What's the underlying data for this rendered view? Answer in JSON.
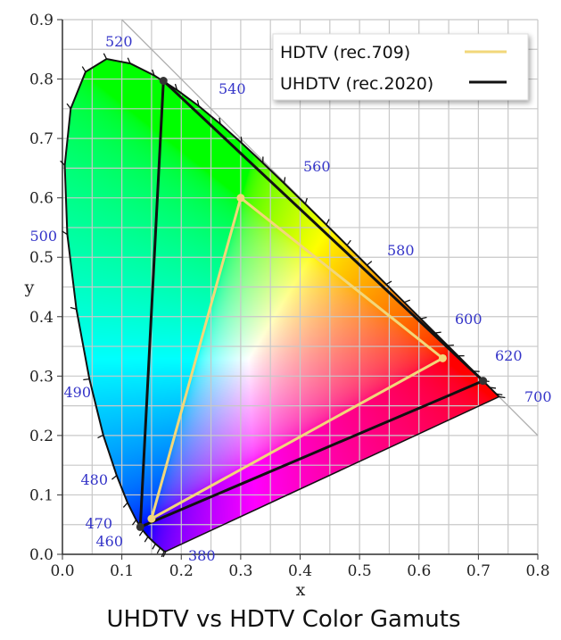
{
  "chart_data": {
    "type": "scatter",
    "title": "UHDTV vs HDTV Color Gamuts",
    "xlabel": "x",
    "ylabel": "y",
    "xlim": [
      0.0,
      0.8
    ],
    "ylim": [
      0.0,
      0.9
    ],
    "xticks": [
      "0.0",
      "0.1",
      "0.2",
      "0.3",
      "0.4",
      "0.5",
      "0.6",
      "0.7",
      "0.8"
    ],
    "yticks": [
      "0.0",
      "0.1",
      "0.2",
      "0.3",
      "0.4",
      "0.5",
      "0.6",
      "0.7",
      "0.8",
      "0.9"
    ],
    "grid": true,
    "grid_step": 0.05,
    "legend_position": "top-right",
    "reference_line": {
      "from": [
        0.1,
        0.9
      ],
      "to": [
        0.8,
        0.2
      ],
      "color": "#b0b0b0"
    },
    "spectral_locus": [
      {
        "nm": 380,
        "x": 0.1741,
        "y": 0.005
      },
      {
        "nm": 420,
        "x": 0.1714,
        "y": 0.0051
      },
      {
        "nm": 440,
        "x": 0.1644,
        "y": 0.0109
      },
      {
        "nm": 450,
        "x": 0.1566,
        "y": 0.0177
      },
      {
        "nm": 460,
        "x": 0.144,
        "y": 0.0297
      },
      {
        "nm": 465,
        "x": 0.1355,
        "y": 0.0399
      },
      {
        "nm": 470,
        "x": 0.1241,
        "y": 0.0578
      },
      {
        "nm": 475,
        "x": 0.1096,
        "y": 0.0868
      },
      {
        "nm": 480,
        "x": 0.0913,
        "y": 0.1327
      },
      {
        "nm": 485,
        "x": 0.0687,
        "y": 0.2007
      },
      {
        "nm": 490,
        "x": 0.0454,
        "y": 0.295
      },
      {
        "nm": 495,
        "x": 0.0235,
        "y": 0.4127
      },
      {
        "nm": 500,
        "x": 0.0082,
        "y": 0.5384
      },
      {
        "nm": 505,
        "x": 0.0039,
        "y": 0.6548
      },
      {
        "nm": 510,
        "x": 0.0139,
        "y": 0.7502
      },
      {
        "nm": 515,
        "x": 0.0389,
        "y": 0.812
      },
      {
        "nm": 520,
        "x": 0.0743,
        "y": 0.8338
      },
      {
        "nm": 525,
        "x": 0.1142,
        "y": 0.8262
      },
      {
        "nm": 530,
        "x": 0.1547,
        "y": 0.8059
      },
      {
        "nm": 535,
        "x": 0.1929,
        "y": 0.7816
      },
      {
        "nm": 540,
        "x": 0.2296,
        "y": 0.7543
      },
      {
        "nm": 545,
        "x": 0.2658,
        "y": 0.7243
      },
      {
        "nm": 550,
        "x": 0.3016,
        "y": 0.6923
      },
      {
        "nm": 555,
        "x": 0.3373,
        "y": 0.6589
      },
      {
        "nm": 560,
        "x": 0.3731,
        "y": 0.6245
      },
      {
        "nm": 565,
        "x": 0.4087,
        "y": 0.5896
      },
      {
        "nm": 570,
        "x": 0.4441,
        "y": 0.5547
      },
      {
        "nm": 575,
        "x": 0.4788,
        "y": 0.5202
      },
      {
        "nm": 580,
        "x": 0.5125,
        "y": 0.4866
      },
      {
        "nm": 585,
        "x": 0.5448,
        "y": 0.4544
      },
      {
        "nm": 590,
        "x": 0.5752,
        "y": 0.4242
      },
      {
        "nm": 595,
        "x": 0.6029,
        "y": 0.3965
      },
      {
        "nm": 600,
        "x": 0.627,
        "y": 0.3725
      },
      {
        "nm": 605,
        "x": 0.6482,
        "y": 0.3514
      },
      {
        "nm": 610,
        "x": 0.6658,
        "y": 0.334
      },
      {
        "nm": 620,
        "x": 0.6915,
        "y": 0.3083
      },
      {
        "nm": 630,
        "x": 0.7079,
        "y": 0.292
      },
      {
        "nm": 640,
        "x": 0.719,
        "y": 0.2809
      },
      {
        "nm": 660,
        "x": 0.73,
        "y": 0.27
      },
      {
        "nm": 700,
        "x": 0.7347,
        "y": 0.2653
      }
    ],
    "wavelength_labels": [
      "380",
      "460",
      "470",
      "480",
      "490",
      "500",
      "520",
      "540",
      "560",
      "580",
      "600",
      "620",
      "700"
    ],
    "series": [
      {
        "name": "HDTV (rec.709)",
        "color": "#f2d77a",
        "points": [
          {
            "x": 0.64,
            "y": 0.33
          },
          {
            "x": 0.3,
            "y": 0.6
          },
          {
            "x": 0.15,
            "y": 0.06
          }
        ]
      },
      {
        "name": "UHDTV (rec.2020)",
        "color": "#111111",
        "points": [
          {
            "x": 0.708,
            "y": 0.292
          },
          {
            "x": 0.17,
            "y": 0.797
          },
          {
            "x": 0.131,
            "y": 0.046
          }
        ]
      }
    ]
  }
}
